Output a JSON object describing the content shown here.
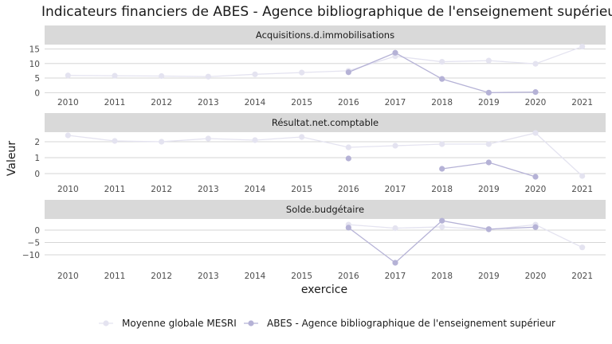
{
  "chart_data": {
    "type": "line",
    "title": "Indicateurs financiers de ABES - Agence bibliographique de l'enseignement supérieur",
    "xlabel": "exercice",
    "ylabel": "Valeur",
    "x": [
      2010,
      2011,
      2012,
      2013,
      2014,
      2015,
      2016,
      2017,
      2018,
      2019,
      2020,
      2021
    ],
    "legend_position": "bottom",
    "grid": true,
    "colors": {
      "Moyenne globale MESRI": "#e4e3f0",
      "ABES - Agence bibliographique de l'enseignement supérieur": "#b5b2d6",
      "strip_bg": "#d9d9d9",
      "grid": "#d6d6d6"
    },
    "panels": [
      {
        "label": "Acquisitions.d.immobilisations",
        "ylim": [
          -1,
          16.5
        ],
        "yticks": [
          0,
          5,
          10,
          15
        ],
        "series": [
          {
            "name": "Moyenne globale MESRI",
            "values": [
              5.9,
              5.8,
              5.7,
              5.5,
              6.3,
              6.9,
              7.5,
              12.5,
              10.6,
              11.0,
              9.9,
              15.8
            ]
          },
          {
            "name": "ABES - Agence bibliographique de l'enseignement supérieur",
            "values": [
              null,
              null,
              null,
              null,
              null,
              null,
              7.0,
              13.7,
              4.7,
              0.0,
              0.2,
              null
            ]
          }
        ]
      },
      {
        "label": "Résultat.net.comptable",
        "ylim": [
          -0.35,
          2.6
        ],
        "yticks": [
          0,
          1,
          2
        ],
        "series": [
          {
            "name": "Moyenne globale MESRI",
            "values": [
              2.4,
              2.05,
              2.0,
              2.2,
              2.1,
              2.3,
              1.65,
              1.75,
              1.85,
              1.85,
              2.55,
              -0.15
            ]
          },
          {
            "name": "ABES - Agence bibliographique de l'enseignement supérieur",
            "values": [
              null,
              null,
              null,
              null,
              null,
              null,
              0.95,
              null,
              0.3,
              0.7,
              -0.2,
              null
            ]
          }
        ]
      },
      {
        "label": "Solde.budgétaire",
        "ylim": [
          -14.5,
          4.5
        ],
        "yticks": [
          0,
          -5,
          -10
        ],
        "series": [
          {
            "name": "Moyenne globale MESRI",
            "values": [
              null,
              null,
              null,
              null,
              null,
              null,
              2.2,
              0.8,
              1.3,
              0.2,
              2.2,
              -7.0
            ]
          },
          {
            "name": "ABES - Agence bibliographique de l'enseignement supérieur",
            "values": [
              null,
              null,
              null,
              null,
              null,
              null,
              1.0,
              -13.2,
              3.8,
              0.4,
              1.2,
              null
            ]
          }
        ]
      }
    ]
  }
}
